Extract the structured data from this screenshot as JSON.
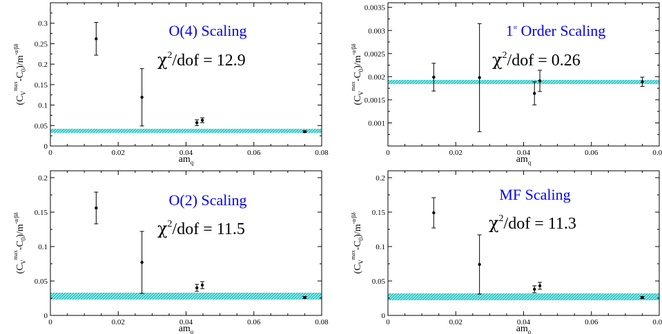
{
  "chart_data": [
    {
      "type": "scatter",
      "title": "O(4) Scaling",
      "chi2_text": "/dof = 12.9",
      "chi_symbol": "χ",
      "chi_exponent": "2",
      "xlabel": "am",
      "xlabel_sub": "q",
      "ylabel": {
        "open": "(C",
        "v_sub": "V",
        "max_sup": "max",
        "mid": "-C",
        "zero_sub": "0",
        "tail": ")/m",
        "exp": "-α/βδ"
      },
      "xlim": [
        0,
        0.08
      ],
      "ylim": [
        0,
        0.35
      ],
      "xticks": [
        0,
        0.02,
        0.04,
        0.06,
        0.08
      ],
      "xtick_labels": [
        "0",
        "0.02",
        "0.04",
        "0.06",
        "0.08"
      ],
      "yticks": [
        0,
        0.05,
        0.1,
        0.15,
        0.2,
        0.25,
        0.3
      ],
      "ytick_labels": [
        "0",
        "0.05",
        "0.1",
        "0.15",
        "0.2",
        "0.25",
        "0.3"
      ],
      "points": [
        {
          "x": 0.0135,
          "y": 0.262,
          "err": 0.04
        },
        {
          "x": 0.027,
          "y": 0.119,
          "err": 0.07
        },
        {
          "x": 0.0432,
          "y": 0.057,
          "err": 0.007
        },
        {
          "x": 0.0448,
          "y": 0.063,
          "err": 0.006
        },
        {
          "x": 0.075,
          "y": 0.035,
          "err": 0.002
        }
      ],
      "band": {
        "low": 0.032,
        "high": 0.042,
        "color": "#33cccc"
      }
    },
    {
      "type": "scatter",
      "title": "1",
      "title_sup": "st",
      "title_rest": "Order Scaling",
      "chi2_text": "/dof = 0.26",
      "chi_symbol": "χ",
      "chi_exponent": "2",
      "xlabel": "am",
      "xlabel_sub": "q",
      "ylabel": {
        "open": "(C",
        "v_sub": "V",
        "max_sup": "max",
        "mid": "-C",
        "zero_sub": "0",
        "tail": ")/m",
        "exp": "-α/βδ"
      },
      "xlim": [
        0,
        0.08
      ],
      "ylim": [
        0.0005,
        0.0036
      ],
      "xticks": [
        0,
        0.02,
        0.04,
        0.06,
        0.08
      ],
      "xtick_labels": [
        "0",
        "0.02",
        "0.04",
        "0.06",
        "0.08"
      ],
      "yticks": [
        0.001,
        0.0015,
        0.002,
        0.0025,
        0.003,
        0.0035
      ],
      "ytick_labels": [
        "0.001",
        "0.0015",
        "0.002",
        "0.0025",
        "0.003",
        "0.0035"
      ],
      "points": [
        {
          "x": 0.0135,
          "y": 0.00199,
          "err": 0.0003
        },
        {
          "x": 0.027,
          "y": 0.00198,
          "err": 0.00117
        },
        {
          "x": 0.0432,
          "y": 0.00164,
          "err": 0.00025
        },
        {
          "x": 0.0448,
          "y": 0.00191,
          "err": 0.00023
        },
        {
          "x": 0.075,
          "y": 0.00189,
          "err": 0.0001
        }
      ],
      "band": {
        "low": 0.00184,
        "high": 0.00193,
        "color": "#33cccc"
      }
    },
    {
      "type": "scatter",
      "title": "O(2) Scaling",
      "chi2_text": "/dof = 11.5",
      "chi_symbol": "χ",
      "chi_exponent": "2",
      "xlabel": "am",
      "xlabel_sub": "q",
      "ylabel": {
        "open": "(C",
        "v_sub": "V",
        "max_sup": "max",
        "mid": "-C",
        "zero_sub": "0",
        "tail": ")/m",
        "exp": "-α/βδ"
      },
      "xlim": [
        0,
        0.08
      ],
      "ylim": [
        0,
        0.21
      ],
      "xticks": [
        0,
        0.02,
        0.04,
        0.06,
        0.08
      ],
      "xtick_labels": [
        "0",
        "0.02",
        "0.04",
        "0.06",
        "0.08"
      ],
      "yticks": [
        0,
        0.05,
        0.1,
        0.15,
        0.2
      ],
      "ytick_labels": [
        "0",
        "0.05",
        "0.1",
        "0.15",
        "0.2"
      ],
      "points": [
        {
          "x": 0.0135,
          "y": 0.156,
          "err": 0.023
        },
        {
          "x": 0.027,
          "y": 0.077,
          "err": 0.045
        },
        {
          "x": 0.0432,
          "y": 0.04,
          "err": 0.005
        },
        {
          "x": 0.0448,
          "y": 0.044,
          "err": 0.005
        },
        {
          "x": 0.075,
          "y": 0.026,
          "err": 0.0015
        }
      ],
      "band": {
        "low": 0.023,
        "high": 0.033,
        "color": "#33cccc"
      }
    },
    {
      "type": "scatter",
      "title": "MF Scaling",
      "chi2_text": "/dof = 11.3",
      "chi_symbol": "χ",
      "chi_exponent": "2",
      "xlabel": "am",
      "xlabel_sub": "q",
      "ylabel": {
        "open": "(C",
        "v_sub": "V",
        "max_sup": "max",
        "mid": "-C",
        "zero_sub": "0",
        "tail": ")/m",
        "exp": "-α/βδ"
      },
      "xlim": [
        0,
        0.08
      ],
      "ylim": [
        0,
        0.21
      ],
      "xticks": [
        0,
        0.02,
        0.04,
        0.06,
        0.08
      ],
      "xtick_labels": [
        "0",
        "0.02",
        "0.04",
        "0.06",
        "0.08"
      ],
      "yticks": [
        0,
        0.05,
        0.1,
        0.15,
        0.2
      ],
      "ytick_labels": [
        "0",
        "0.05",
        "0.1",
        "0.15",
        "0.2"
      ],
      "points": [
        {
          "x": 0.0135,
          "y": 0.149,
          "err": 0.022
        },
        {
          "x": 0.027,
          "y": 0.074,
          "err": 0.043
        },
        {
          "x": 0.0432,
          "y": 0.038,
          "err": 0.005
        },
        {
          "x": 0.0448,
          "y": 0.043,
          "err": 0.005
        },
        {
          "x": 0.075,
          "y": 0.026,
          "err": 0.0015
        }
      ],
      "band": {
        "low": 0.022,
        "high": 0.032,
        "color": "#33cccc"
      }
    }
  ]
}
